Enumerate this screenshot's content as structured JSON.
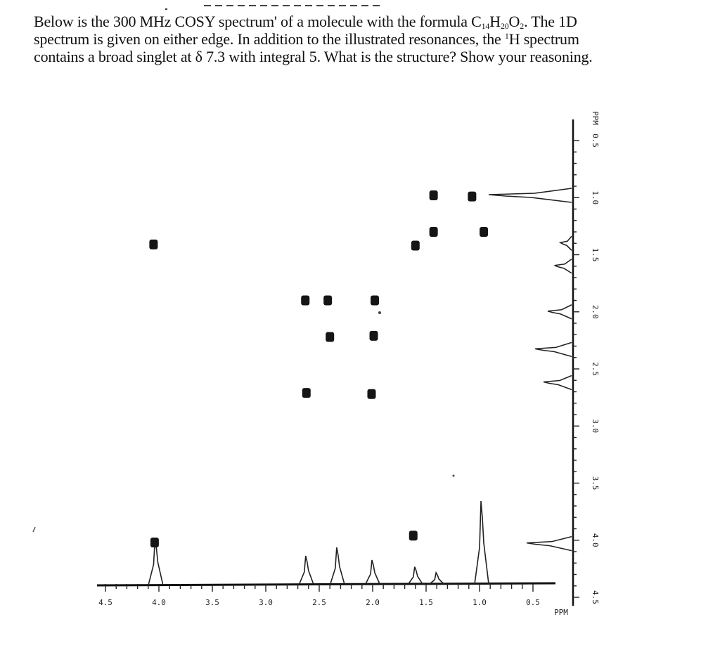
{
  "question": {
    "line1_a": "Below is the 300 MHz COSY spectrum",
    "line1_mark": "'",
    "line1_b": " of a molecule with the formula C",
    "formula_c_sub": "14",
    "formula_h": "H",
    "formula_h_sub": "20",
    "formula_o": "O",
    "formula_o_sub": "2",
    "line1_c": ". The 1D",
    "line2_a": "spectrum is given on either edge. In addition to the illustrated resonances, the ",
    "line2_sup": "1",
    "line2_b": "H spectrum",
    "line3": "contains a broad singlet at δ 7.3 with integral 5. What is the structure? Show your reasoning."
  },
  "chart_data": {
    "type": "scatter",
    "title": "",
    "xlabel": "PPM",
    "ylabel": "PPM",
    "xlim": [
      4.5,
      0.5
    ],
    "ylim": [
      0.5,
      4.5
    ],
    "x_ticks": [
      "4.5",
      "4.0",
      "3.5",
      "3.0",
      "2.5",
      "2.0",
      "1.5",
      "1.0",
      "0.5"
    ],
    "y_ticks": [
      "0.5",
      "1.0",
      "1.5",
      "2.0",
      "2.5",
      "3.0",
      "3.5",
      "4.0",
      "4.5"
    ],
    "x_unit_label": "PPM",
    "y_unit_label": "PPM",
    "cross_peaks": [
      {
        "x": 4.04,
        "y": 4.02
      },
      {
        "x": 4.05,
        "y": 1.41
      },
      {
        "x": 2.62,
        "y": 2.71
      },
      {
        "x": 2.63,
        "y": 1.9
      },
      {
        "x": 2.42,
        "y": 1.9
      },
      {
        "x": 2.4,
        "y": 2.22
      },
      {
        "x": 2.01,
        "y": 2.72
      },
      {
        "x": 1.99,
        "y": 2.21
      },
      {
        "x": 1.98,
        "y": 1.9
      },
      {
        "x": 1.62,
        "y": 3.96
      },
      {
        "x": 1.6,
        "y": 1.42
      },
      {
        "x": 1.43,
        "y": 1.3
      },
      {
        "x": 1.43,
        "y": 0.98
      },
      {
        "x": 1.07,
        "y": 0.99
      },
      {
        "x": 0.96,
        "y": 1.3
      }
    ],
    "projection_peaks": [
      {
        "shift": 4.03,
        "height": 0.55
      },
      {
        "shift": 2.62,
        "height": 0.35
      },
      {
        "shift": 2.33,
        "height": 0.45
      },
      {
        "shift": 2.0,
        "height": 0.3
      },
      {
        "shift": 1.6,
        "height": 0.22
      },
      {
        "shift": 1.4,
        "height": 0.15
      },
      {
        "shift": 0.98,
        "height": 1.0
      }
    ]
  }
}
